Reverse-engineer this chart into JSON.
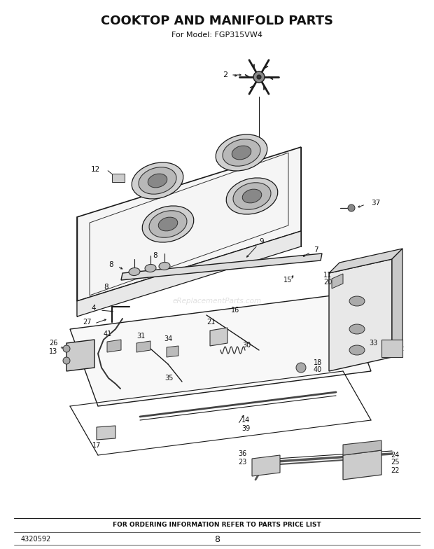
{
  "title": "COOKTOP AND MANIFOLD PARTS",
  "subtitle": "For Model: FGP315VW4",
  "footer_text": "FOR ORDERING INFORMATION REFER TO PARTS PRICE LIST",
  "part_number": "4320592",
  "page_number": "8",
  "bg_color": "#ffffff",
  "title_fontsize": 13,
  "subtitle_fontsize": 8,
  "footer_fontsize": 6.5,
  "part_num_fontsize": 7,
  "watermark": "eReplacementParts.com",
  "fig_width": 6.2,
  "fig_height": 7.84,
  "dpi": 100
}
